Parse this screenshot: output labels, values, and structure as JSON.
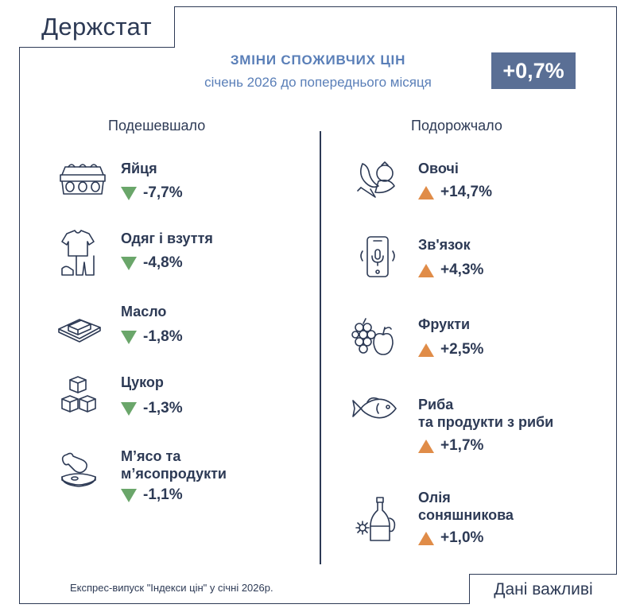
{
  "brand": "Держстат",
  "header": {
    "title": "ЗМІНИ СПОЖИВЧИХ ЦІН",
    "subtitle": "січень 2026 до попереднього місяця",
    "total": "+0,7%"
  },
  "columns": {
    "left_heading": "Подешевшало",
    "right_heading": "Подорожчало"
  },
  "chart_data": {
    "type": "table",
    "title": "ЗМІНИ СПОЖИВЧИХ ЦІН",
    "subtitle": "січень 2026 до попереднього місяця",
    "total_change_percent": 0.7,
    "cheaper": [
      {
        "name": "Яйця",
        "label": "-7,7%",
        "value": -7.7,
        "icon": "egg-carton-icon"
      },
      {
        "name": "Одяг і взуття",
        "label": "-4,8%",
        "value": -4.8,
        "icon": "clothing-icon"
      },
      {
        "name": "Масло",
        "label": "-1,8%",
        "value": -1.8,
        "icon": "butter-icon"
      },
      {
        "name": "Цукор",
        "label": "-1,3%",
        "value": -1.3,
        "icon": "sugar-cubes-icon"
      },
      {
        "name": "М’ясо та\nм’ясопродукти",
        "label": "-1,1%",
        "value": -1.1,
        "icon": "meat-icon"
      }
    ],
    "pricier": [
      {
        "name": "Овочі",
        "label": "+14,7%",
        "value": 14.7,
        "icon": "vegetables-icon"
      },
      {
        "name": "Зв'язок",
        "label": "+4,3%",
        "value": 4.3,
        "icon": "smartphone-icon"
      },
      {
        "name": "Фрукти",
        "label": "+2,5%",
        "value": 2.5,
        "icon": "fruits-icon"
      },
      {
        "name": "Риба\nта продукти з риби",
        "label": "+1,7%",
        "value": 1.7,
        "icon": "fish-icon"
      },
      {
        "name": "Олія\nсоняшникова",
        "label": "+1,0%",
        "value": 1.0,
        "icon": "oil-bottle-icon"
      }
    ],
    "colors": {
      "down": "#6aa66a",
      "up": "#e08c48",
      "accent": "#5a7fb8",
      "badge": "#5a6f95"
    }
  },
  "footer": {
    "note": "Експрес-випуск \"Індекси цін\" у січні 2026р.",
    "tagline": "Дані важливі"
  }
}
